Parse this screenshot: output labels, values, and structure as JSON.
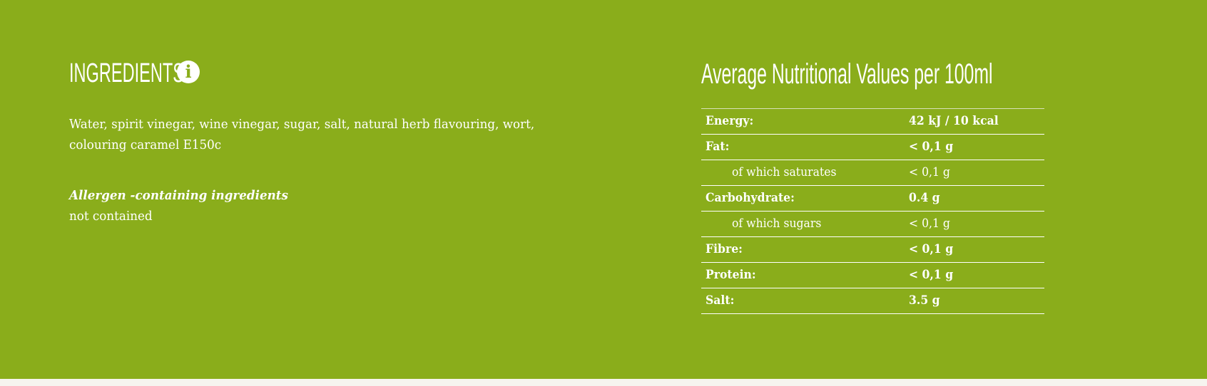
{
  "ingredients": {
    "title": "INGREDIENTS",
    "info_icon": "info-icon",
    "text": "Water, spirit vinegar, wine vinegar, sugar, salt, natural herb flavouring, wort, colouring caramel E150c",
    "allergen_label": "Allergen -containing ingredients",
    "allergen_value": "not contained"
  },
  "nutrition": {
    "title": "Average Nutritional Values per 100ml",
    "rows": [
      {
        "label": "Energy:",
        "value": "42 kJ / 10 kcal"
      },
      {
        "label": "Fat:",
        "value": "< 0,1 g"
      },
      {
        "label": "of which saturates",
        "value": "< 0,1 g"
      },
      {
        "label": "Carbohydrate:",
        "value": "0.4 g"
      },
      {
        "label": "of which sugars",
        "value": "< 0,1 g"
      },
      {
        "label": "Fibre:",
        "value": "< 0,1 g"
      },
      {
        "label": "Protein:",
        "value": "< 0,1 g"
      },
      {
        "label": "Salt:",
        "value": "3.5 g"
      }
    ]
  },
  "colors": {
    "background": "#8aad1b",
    "text": "#ffffff",
    "footer": "#f6f4ef"
  }
}
